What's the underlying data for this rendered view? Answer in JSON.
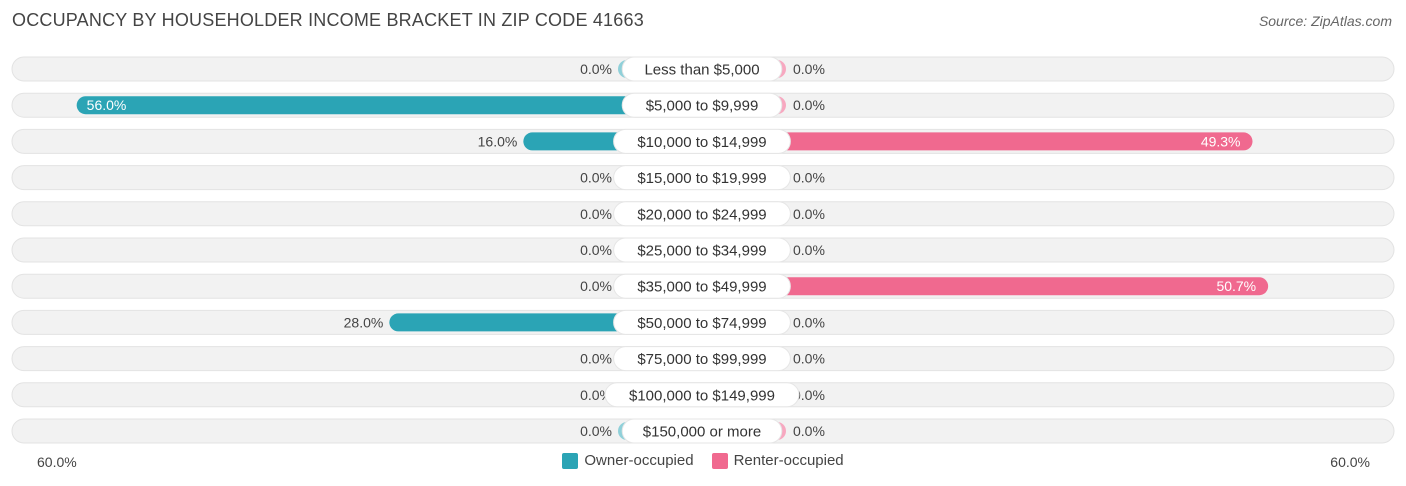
{
  "title": "OCCUPANCY BY HOUSEHOLDER INCOME BRACKET IN ZIP CODE 41663",
  "source": "Source: ZipAtlas.com",
  "axis": {
    "left_label": "60.0%",
    "right_label": "60.0%"
  },
  "legend": [
    {
      "name": "Owner-occupied",
      "color": "#2ba4b5"
    },
    {
      "name": "Renter-occupied",
      "color": "#f0698f"
    }
  ],
  "chart_data": {
    "type": "bar",
    "orientation": "diverging-horizontal",
    "max": 60,
    "categories": [
      "Less than $5,000",
      "$5,000 to $9,999",
      "$10,000 to $14,999",
      "$15,000 to $19,999",
      "$20,000 to $24,999",
      "$25,000 to $34,999",
      "$35,000 to $49,999",
      "$50,000 to $74,999",
      "$75,000 to $99,999",
      "$100,000 to $149,999",
      "$150,000 or more"
    ],
    "series": [
      {
        "name": "Owner-occupied",
        "values": [
          0.0,
          56.0,
          16.0,
          0.0,
          0.0,
          0.0,
          0.0,
          28.0,
          0.0,
          0.0,
          0.0
        ],
        "labels": [
          "0.0%",
          "56.0%",
          "16.0%",
          "0.0%",
          "0.0%",
          "0.0%",
          "0.0%",
          "28.0%",
          "0.0%",
          "0.0%",
          "0.0%"
        ]
      },
      {
        "name": "Renter-occupied",
        "values": [
          0.0,
          0.0,
          49.3,
          0.0,
          0.0,
          0.0,
          50.7,
          0.0,
          0.0,
          0.0,
          0.0
        ],
        "labels": [
          "0.0%",
          "0.0%",
          "49.3%",
          "0.0%",
          "0.0%",
          "0.0%",
          "50.7%",
          "0.0%",
          "0.0%",
          "0.0%",
          "0.0%"
        ]
      }
    ],
    "colors": {
      "owner_strong": "#2ba4b5",
      "owner_light": "#8fd0d9",
      "renter_strong": "#f0698f",
      "renter_light": "#f7a8c0",
      "track": "#f1f1f1"
    }
  }
}
